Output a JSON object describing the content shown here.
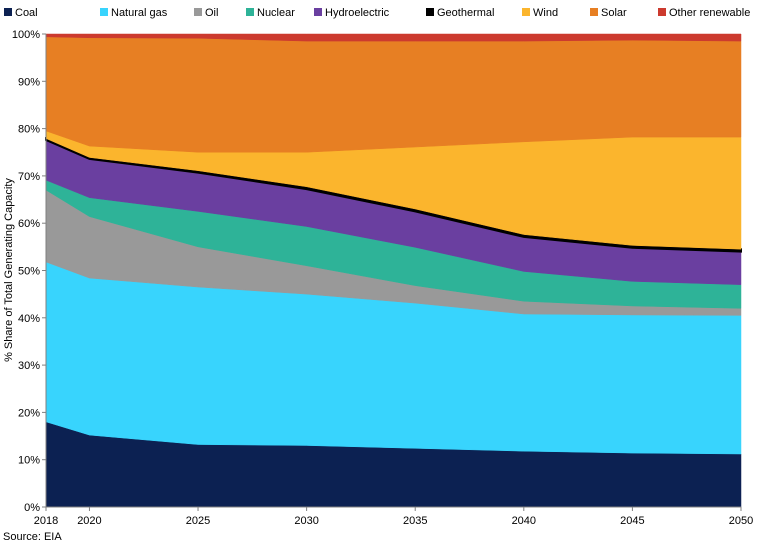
{
  "chart_data": {
    "type": "area",
    "stacked": true,
    "x": [
      2018,
      2020,
      2025,
      2030,
      2035,
      2040,
      2045,
      2050
    ],
    "xlabel": "",
    "ylabel": "% Share of Total Generating Capacity",
    "ylim": [
      0,
      100
    ],
    "yticks": [
      "0%",
      "10%",
      "20%",
      "30%",
      "40%",
      "50%",
      "60%",
      "70%",
      "80%",
      "90%",
      "100%"
    ],
    "xticks": [
      "2018",
      "2020",
      "2025",
      "2030",
      "2035",
      "2040",
      "2045",
      "2050"
    ],
    "legend_position": "top",
    "source": "Source: EIA",
    "series": [
      {
        "name": "Coal",
        "color": "#0c2152",
        "values": [
          18,
          15.2,
          13.2,
          13,
          12.4,
          11.8,
          11.4,
          11.2
        ]
      },
      {
        "name": "Natural gas",
        "color": "#38d4fd",
        "values": [
          33.8,
          33.2,
          33.3,
          32,
          30.7,
          29,
          29.2,
          29.3
        ]
      },
      {
        "name": "Oil",
        "color": "#999999",
        "values": [
          15.2,
          13,
          8.5,
          6,
          3.7,
          2.7,
          1.9,
          1.5
        ]
      },
      {
        "name": "Nuclear",
        "color": "#2eb398",
        "values": [
          2.1,
          4,
          7.5,
          8.3,
          8.1,
          6.3,
          5.2,
          5
        ]
      },
      {
        "name": "Hydroelectric",
        "color": "#6a3fa0",
        "values": [
          8.5,
          8.2,
          8.2,
          7.9,
          7.6,
          7.3,
          7.1,
          7
        ]
      },
      {
        "name": "Geothermal",
        "color": "#000000",
        "values": [
          0.3,
          0.3,
          0.4,
          0.5,
          0.5,
          0.5,
          0.5,
          0.5
        ]
      },
      {
        "name": "Wind",
        "color": "#fbb52d",
        "values": [
          1.6,
          2.4,
          3.9,
          7.3,
          13.1,
          19.6,
          22.9,
          23.7
        ]
      },
      {
        "name": "Solar",
        "color": "#e77f23",
        "values": [
          19.9,
          22.9,
          24.1,
          23.5,
          22.4,
          21.3,
          20.5,
          20.3
        ]
      },
      {
        "name": "Other renewable",
        "color": "#cc3a2e",
        "values": [
          0.6,
          0.8,
          0.9,
          1.5,
          1.5,
          1.5,
          1.5,
          1.5
        ]
      }
    ]
  }
}
